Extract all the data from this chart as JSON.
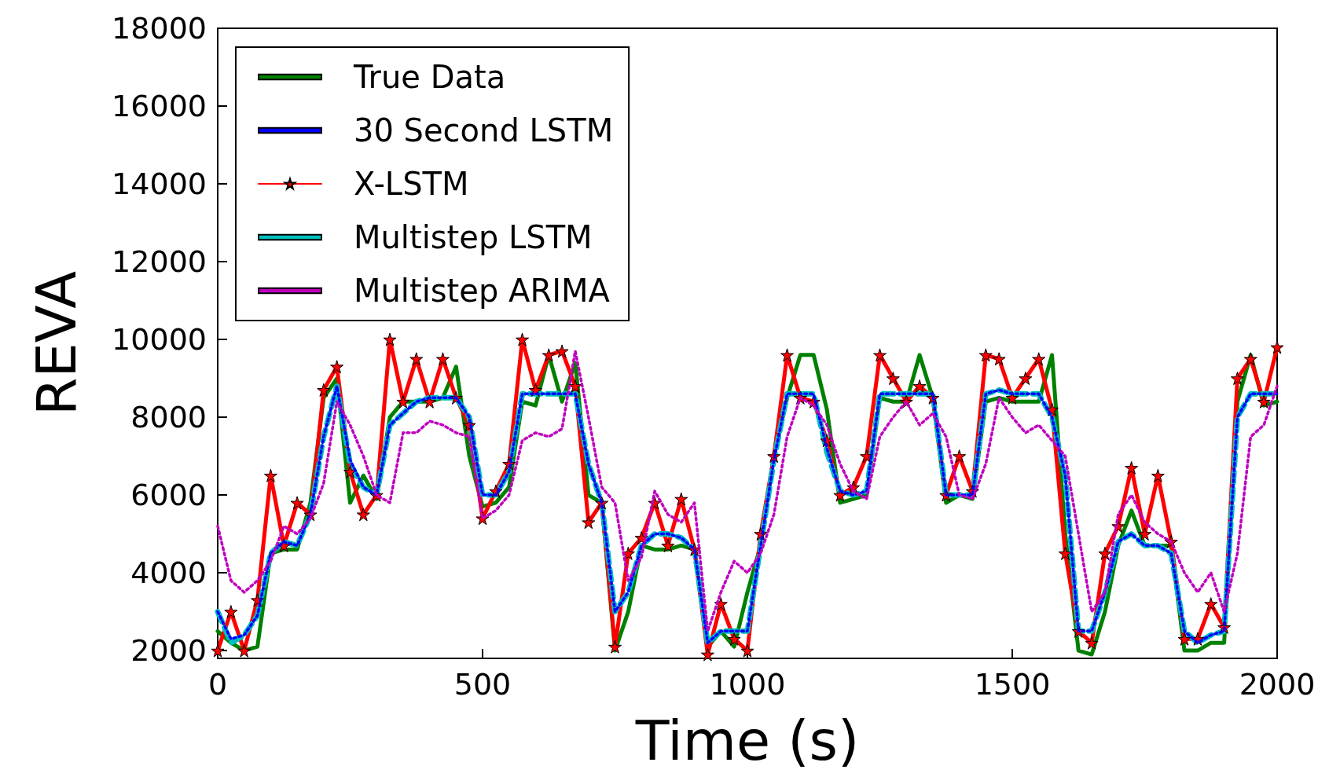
{
  "chart_data": {
    "type": "line",
    "xlabel": "Time (s)",
    "ylabel": "REVA",
    "x": [
      0,
      25,
      50,
      75,
      100,
      125,
      150,
      175,
      200,
      225,
      250,
      275,
      300,
      325,
      350,
      375,
      400,
      425,
      450,
      475,
      500,
      525,
      550,
      575,
      600,
      625,
      650,
      675,
      700,
      725,
      750,
      775,
      800,
      825,
      850,
      875,
      900,
      925,
      950,
      975,
      1000,
      1025,
      1050,
      1075,
      1100,
      1125,
      1150,
      1175,
      1200,
      1225,
      1250,
      1275,
      1300,
      1325,
      1350,
      1375,
      1400,
      1425,
      1450,
      1475,
      1500,
      1525,
      1550,
      1575,
      1600,
      1625,
      1650,
      1675,
      1700,
      1725,
      1750,
      1775,
      1800,
      1825,
      1850,
      1875,
      1900,
      1925,
      1950,
      1975,
      2000
    ],
    "series": [
      {
        "name": "True Data",
        "color": "#008000",
        "line_style": "solid",
        "marker": "none",
        "values": [
          2500,
          2200,
          2000,
          2100,
          4500,
          4600,
          4600,
          5800,
          8500,
          9000,
          5800,
          6500,
          5900,
          8000,
          8400,
          8400,
          8400,
          8500,
          9300,
          7000,
          5700,
          5800,
          6200,
          8400,
          8300,
          9600,
          8400,
          9400,
          6000,
          5800,
          2000,
          3000,
          4700,
          4600,
          4600,
          4700,
          4600,
          2100,
          2500,
          2100,
          3500,
          4700,
          7000,
          8500,
          9600,
          9600,
          8200,
          5800,
          5900,
          6000,
          8500,
          8400,
          8400,
          9600,
          8500,
          5800,
          6000,
          5900,
          8400,
          8500,
          8400,
          8400,
          8400,
          9600,
          5000,
          2000,
          1900,
          3000,
          4700,
          5600,
          4700,
          4700,
          4700,
          2000,
          2000,
          2200,
          2200,
          8400,
          9600,
          8300,
          8400
        ]
      },
      {
        "name": "30 Second LSTM",
        "color": "#0000ff",
        "line_style": "dotted",
        "marker": "none",
        "values": [
          3000,
          2300,
          2400,
          2900,
          4500,
          4800,
          4700,
          5500,
          7500,
          8800,
          6900,
          6200,
          6000,
          7800,
          8100,
          8400,
          8500,
          8500,
          8500,
          8000,
          6000,
          6000,
          6600,
          8600,
          8600,
          8600,
          8600,
          8600,
          6800,
          5800,
          3000,
          3500,
          4700,
          5000,
          5000,
          4900,
          4600,
          2200,
          2500,
          2500,
          2500,
          4700,
          6900,
          8600,
          8600,
          8600,
          7200,
          6100,
          6000,
          6100,
          8600,
          8600,
          8600,
          8600,
          8600,
          6000,
          6000,
          6000,
          8600,
          8700,
          8600,
          8600,
          8600,
          8000,
          6500,
          2500,
          2500,
          3500,
          4800,
          5000,
          4700,
          4700,
          4500,
          2500,
          2200,
          2400,
          2500,
          8000,
          8600,
          8600,
          8600
        ]
      },
      {
        "name": "X-LSTM",
        "color": "#ff0000",
        "line_style": "solid",
        "marker": "star",
        "values": [
          2000,
          3000,
          2000,
          3300,
          6500,
          4700,
          5800,
          5500,
          8700,
          9300,
          6600,
          5500,
          6000,
          10000,
          8400,
          9500,
          8400,
          9500,
          8500,
          7800,
          5400,
          6100,
          6800,
          10000,
          8700,
          9600,
          9700,
          8800,
          5300,
          5800,
          2100,
          4500,
          4900,
          5800,
          4700,
          5900,
          4600,
          1900,
          3200,
          2300,
          2000,
          5000,
          7000,
          9600,
          8500,
          8400,
          7400,
          6000,
          6200,
          7000,
          9600,
          9000,
          8400,
          8800,
          8500,
          6000,
          7000,
          6100,
          9600,
          9500,
          8500,
          9000,
          9500,
          8200,
          4500,
          2500,
          2200,
          4500,
          5200,
          6700,
          5000,
          6500,
          4800,
          2300,
          2300,
          3200,
          2600,
          9000,
          9500,
          8400,
          9800
        ]
      },
      {
        "name": "Multistep LSTM",
        "color": "#00bfbf",
        "line_style": "dashed",
        "marker": "none",
        "values": [
          3000,
          2200,
          2400,
          2900,
          4500,
          4800,
          4700,
          5500,
          7500,
          8800,
          6800,
          6200,
          6000,
          7800,
          8100,
          8400,
          8500,
          8500,
          8500,
          8000,
          6000,
          6000,
          6600,
          8600,
          8600,
          8600,
          8600,
          8600,
          6800,
          5800,
          3000,
          3500,
          4700,
          5000,
          5000,
          4900,
          4600,
          2200,
          2500,
          2500,
          2500,
          4700,
          6900,
          8600,
          8600,
          8600,
          7100,
          6100,
          6000,
          6100,
          8600,
          8600,
          8600,
          8600,
          8600,
          6000,
          6000,
          6000,
          8600,
          8700,
          8600,
          8600,
          8600,
          8000,
          6500,
          2500,
          2500,
          3500,
          4800,
          5000,
          4700,
          4700,
          4500,
          2500,
          2200,
          2400,
          2500,
          8000,
          8600,
          8600,
          8600
        ]
      },
      {
        "name": "Multistep ARIMA",
        "color": "#bf00bf",
        "line_style": "dotted",
        "marker": "none",
        "values": [
          5200,
          3800,
          3500,
          3800,
          4300,
          5200,
          5000,
          5400,
          6300,
          8400,
          7800,
          7000,
          6000,
          5800,
          7600,
          7600,
          7900,
          7800,
          7600,
          7500,
          5400,
          5600,
          6000,
          7400,
          7600,
          7500,
          7700,
          9700,
          8000,
          6200,
          5800,
          3800,
          4400,
          6100,
          5500,
          5300,
          5800,
          2500,
          3500,
          4300,
          4000,
          4500,
          5500,
          7500,
          8500,
          8300,
          7800,
          6800,
          6100,
          5900,
          7500,
          8000,
          8400,
          7800,
          8100,
          7500,
          6000,
          5900,
          6800,
          8500,
          8000,
          7600,
          7800,
          7400,
          7000,
          5000,
          3000,
          3500,
          5500,
          6000,
          5300,
          5000,
          4800,
          4000,
          3500,
          4000,
          3000,
          4500,
          7500,
          7800,
          8800
        ]
      }
    ],
    "xlim": [
      0,
      2000
    ],
    "xticks": [
      0,
      500,
      1000,
      1500,
      2000
    ],
    "ylim": [
      1800,
      18000
    ],
    "yticks": [
      2000,
      4000,
      6000,
      8000,
      10000,
      12000,
      14000,
      16000,
      18000
    ],
    "grid": false,
    "legend": "top left"
  }
}
